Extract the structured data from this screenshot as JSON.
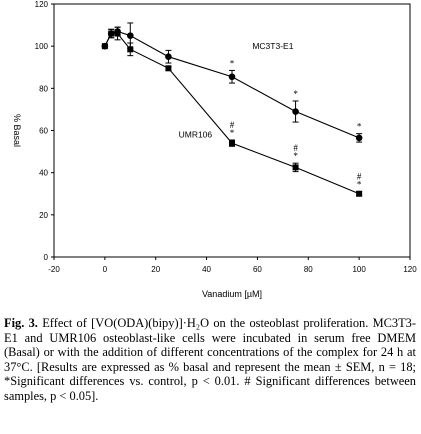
{
  "chart_data": {
    "type": "line",
    "title": "",
    "xlabel": "Vanadium [µM]",
    "ylabel": "% Basal",
    "xlim": [
      -20,
      120
    ],
    "ylim": [
      0,
      120
    ],
    "x_ticks": [
      "-20",
      "0",
      "20",
      "40",
      "60",
      "80",
      "100",
      "120"
    ],
    "y_ticks": [
      "0",
      "20",
      "40",
      "60",
      "80",
      "100",
      "120"
    ],
    "grid": false,
    "series": [
      {
        "name": "MC3T3-E1",
        "x": [
          0,
          2.5,
          5,
          10,
          25,
          50,
          75,
          100
        ],
        "y": [
          100,
          106,
          107,
          105,
          95,
          85.5,
          69,
          56.5
        ],
        "err": [
          0,
          2,
          2,
          6,
          3,
          3,
          5,
          2
        ],
        "annotations": [
          "",
          "",
          "",
          "",
          "",
          "*",
          "*",
          "*"
        ]
      },
      {
        "name": "UMR106",
        "x": [
          0,
          2.5,
          5,
          10,
          25,
          50,
          75,
          100
        ],
        "y": [
          100,
          106,
          106,
          98.5,
          89.5,
          54,
          42.5,
          30
        ],
        "err": [
          0,
          2,
          3,
          3,
          1,
          1.5,
          2,
          1
        ],
        "annotations": [
          "",
          "",
          "",
          "",
          "",
          "#\n*",
          "#\n*",
          "#\n*"
        ]
      }
    ]
  },
  "caption": {
    "label": "Fig. 3.",
    "text": "Effect of [VO(ODA)(bipy)]·H₂O on the osteoblast proliferation. MC3T3-E1 and UMR106 osteoblast-like cells were incubated in serum free DMEM (Basal) or with the addition of different concentrations of the complex for 24 h at 37°C. [Results are expressed as % basal and represent the mean ± SEM, n = 18; *Significant differences vs. control, p < 0.01. # Significant differences between samples, p < 0.05]."
  }
}
